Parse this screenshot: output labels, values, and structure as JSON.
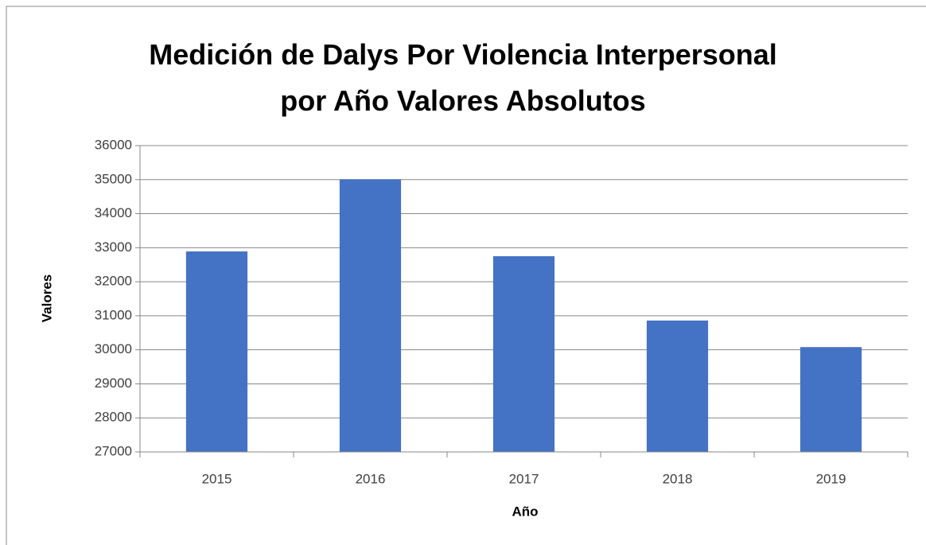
{
  "chart_data": {
    "type": "bar",
    "title": "Medición de Dalys Por Violencia Interpersonal por Año Valores Absolutos",
    "x_label": "Año",
    "y_label": "Valores",
    "categories": [
      "2015",
      "2016",
      "2017",
      "2018",
      "2019"
    ],
    "values": [
      32890,
      35010,
      32750,
      30860,
      30080
    ],
    "color": "#4472c4",
    "ylim": [
      27000,
      36000
    ],
    "yticks": [
      27000,
      28000,
      29000,
      30000,
      31000,
      32000,
      33000,
      34000,
      35000,
      36000
    ],
    "grid": true
  }
}
